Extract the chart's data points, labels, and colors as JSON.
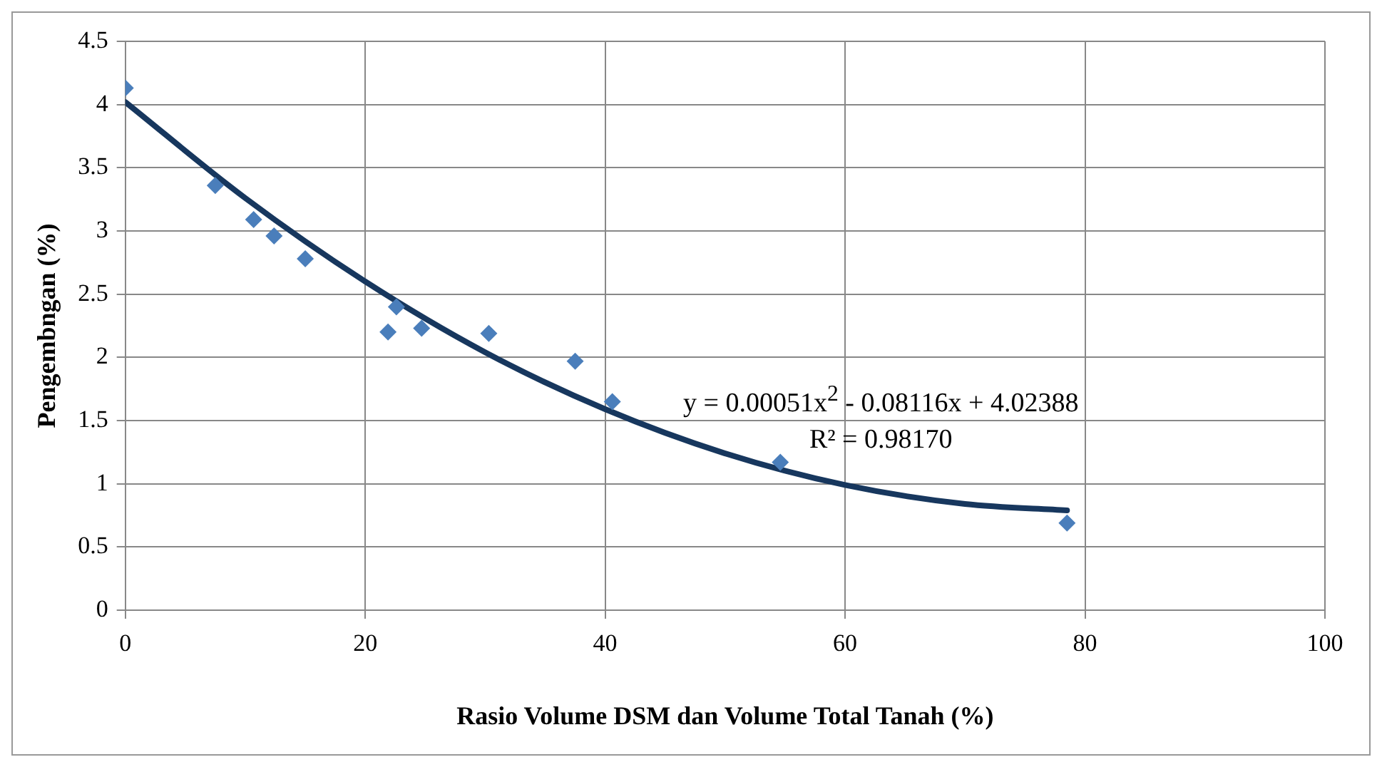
{
  "chart_data": {
    "type": "scatter",
    "xlabel": "Rasio Volume DSM dan Volume Total Tanah (%)",
    "ylabel": "Pengembngan (%)",
    "annotations": [
      "y = 0.00051x$^{2}$ - 0.08116x + 4.02388",
      "R² = 0.98170"
    ],
    "series": [
      {
        "type": "scatter",
        "color": "#4a7ebb",
        "marker": "diamond",
        "x": [
          0,
          7.5,
          10.7,
          12.4,
          15.0,
          21.9,
          22.6,
          24.7,
          30.3,
          37.5,
          40.6,
          54.6,
          78.5
        ],
        "values": [
          4.13,
          3.36,
          3.09,
          2.96,
          2.78,
          2.2,
          2.4,
          2.23,
          2.19,
          1.97,
          1.65,
          1.17,
          0.69
        ]
      },
      {
        "type": "line",
        "color": "#17375e",
        "marker": "none",
        "x": [
          0,
          10,
          20,
          30,
          40,
          50,
          60,
          70,
          78.5
        ],
        "values": [
          4.02,
          3.26,
          2.6,
          2.04,
          1.59,
          1.24,
          0.99,
          0.84,
          0.79
        ]
      }
    ],
    "xlim": [
      0,
      100
    ],
    "xticks": [
      0,
      20,
      40,
      60,
      80,
      100
    ],
    "ylim": [
      0,
      4.5
    ],
    "yticks": [
      0,
      0.5,
      1,
      1.5,
      2,
      2.5,
      3,
      3.5,
      4,
      4.5
    ],
    "grid": true,
    "legend": false
  }
}
